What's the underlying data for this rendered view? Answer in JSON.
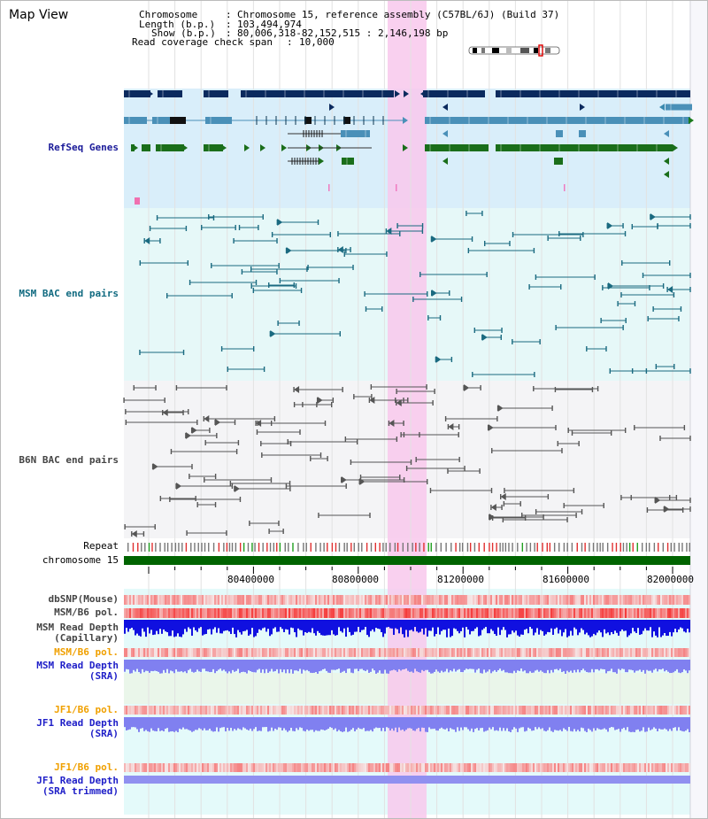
{
  "page": {
    "title": "Map View"
  },
  "header": {
    "chromosome_key": "Chromosome",
    "chromosome_value": "Chromosome 15, reference assembly (C57BL/6J) (Build 37)",
    "length_key": "Length (b.p.)",
    "length_value": "103,494,974",
    "show_key": "Show (b.p.)",
    "show_value": "80,006,318-82,152,515 : 2,146,198 bp",
    "span_key": "Read coverage check span",
    "span_value": "10,000"
  },
  "tracks": {
    "refseq": "RefSeq Genes",
    "msm_bac": "MSM BAC end pairs",
    "b6n_bac": "B6N BAC end pairs",
    "repeat": "Repeat",
    "chromosome": "chromosome 15",
    "dbsnp": "dbSNP(Mouse)",
    "msm_pol_1": "MSM/B6 pol.",
    "msm_depth_cap_1": "MSM Read Depth",
    "msm_depth_cap_2": "(Capillary)",
    "msm_pol_2": "MSM/B6 pol.",
    "msm_depth_sra_1": "MSM Read Depth",
    "msm_depth_sra_2": "(SRA)",
    "jf1_pol_1": "JF1/B6 pol.",
    "jf1_depth_sra_1": "JF1 Read Depth",
    "jf1_depth_sra_2": "(SRA)",
    "jf1_pol_2": "JF1/B6 pol.",
    "jf1_depth_trim_1": "JF1 Read Depth",
    "jf1_depth_trim_2": "(SRA trimmed)"
  },
  "axis": {
    "ticks": [
      "80400000",
      "80800000",
      "81200000",
      "81600000",
      "82000000"
    ]
  },
  "colors": {
    "refseq_bg": "#d9eefa",
    "gene_navy": "#0b2a5e",
    "gene_steel": "#4a90b8",
    "gene_green": "#1a6e1a",
    "msm_bg": "#e6f8f8",
    "msm_line": "#1a6a80",
    "b6n_bg": "#f4f4f6",
    "b6n_line": "#555555",
    "highlight": "#f8c8ec",
    "depth_blue": "#1010e0",
    "depth_lav": "#8080f0",
    "pol_red": "#f04040",
    "chrom_green": "#006400"
  }
}
